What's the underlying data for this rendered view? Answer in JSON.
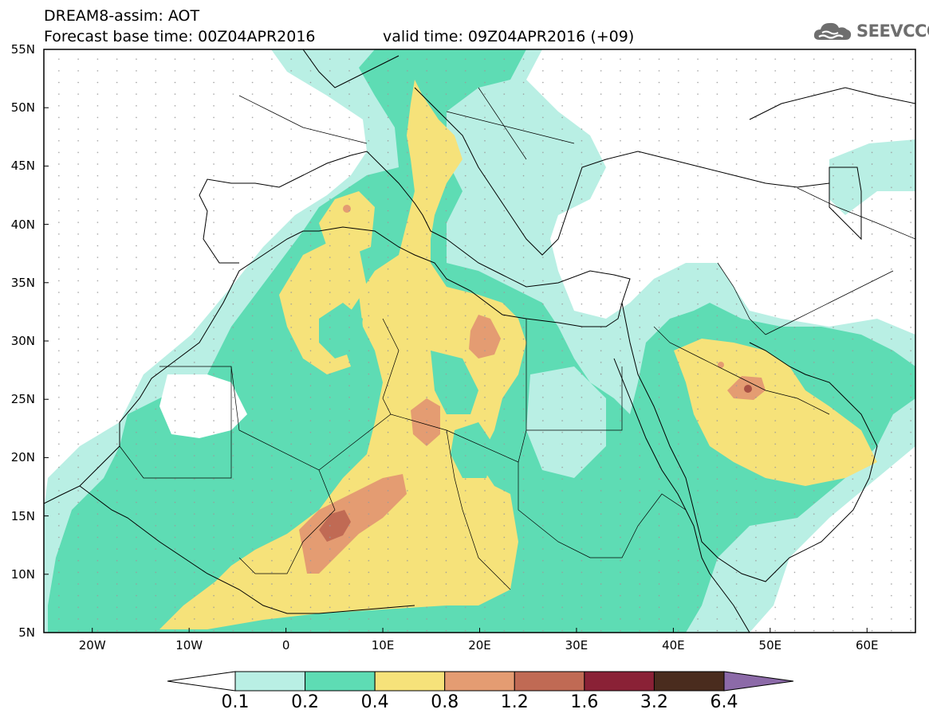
{
  "header": {
    "title": "DREAM8-assim: AOT",
    "base_time": "Forecast base time: 00Z04APR2016",
    "valid_time": "valid time: 09Z04APR2016 (+09)"
  },
  "logo": {
    "text": "SEEVCCC",
    "icon": "cloud-icon",
    "color": "#6e6e6e"
  },
  "map": {
    "lat_labels": [
      "55N",
      "50N",
      "45N",
      "40N",
      "35N",
      "30N",
      "25N",
      "20N",
      "15N",
      "10N",
      "5N"
    ],
    "lon_labels": [
      "20W",
      "10W",
      "0",
      "10E",
      "20E",
      "30E",
      "40E",
      "50E",
      "60E"
    ],
    "lat_range": [
      5,
      55
    ],
    "lon_range": [
      -25,
      65
    ]
  },
  "colorbar": {
    "labels": [
      "0.1",
      "0.2",
      "0.4",
      "0.8",
      "1.2",
      "1.6",
      "3.2",
      "6.4"
    ],
    "colors": [
      "#b9efe4",
      "#5edcb4",
      "#f6e27a",
      "#e49c72",
      "#c06a54",
      "#8a2136",
      "#4a2c1e"
    ],
    "under_color": "#ffffff",
    "over_color": "#8c6aa8"
  },
  "field_colors": {
    "lt": "#b9efe4",
    "md": "#5edcb4",
    "yl": "#f6e27a",
    "or": "#e49c72",
    "rd": "#c06a54",
    "dk": "#8a3a36"
  }
}
